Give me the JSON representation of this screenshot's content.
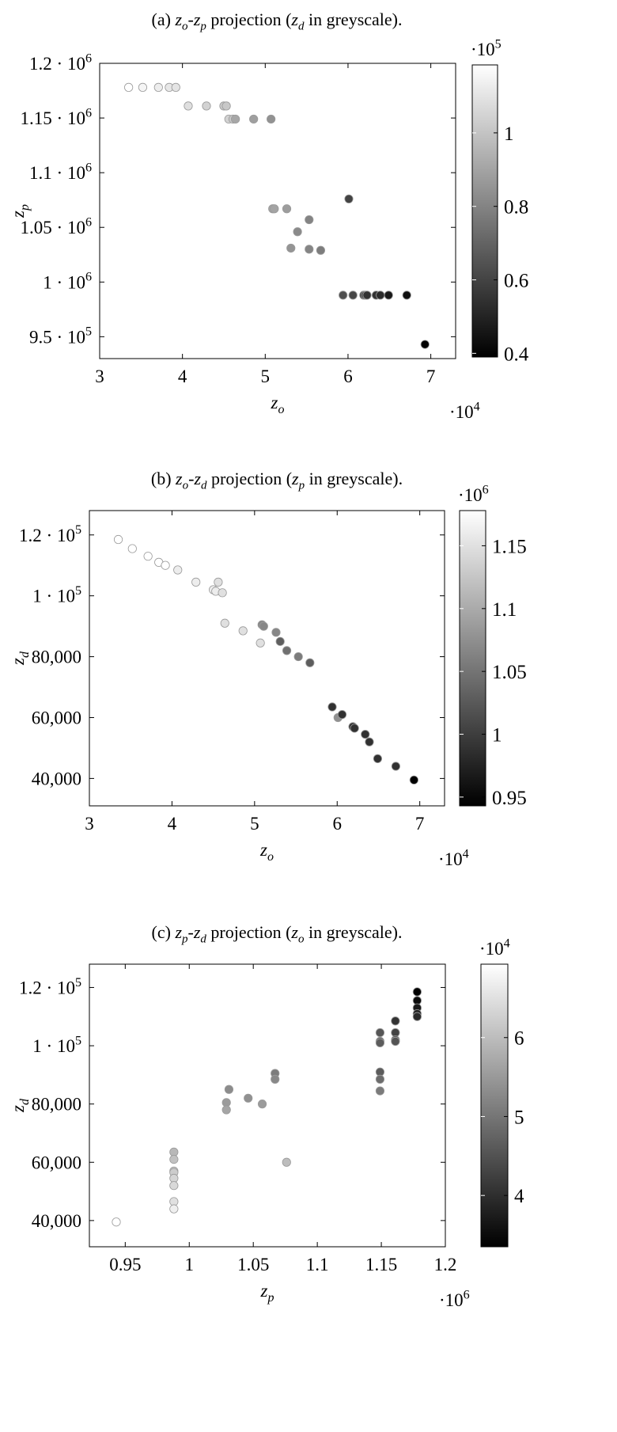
{
  "charts": [
    {
      "caption_parts": [
        "(a) ",
        "z",
        "o",
        "-",
        "z",
        "p",
        " projection (",
        "z",
        "d",
        " in greyscale)."
      ],
      "chart_data": {
        "type": "scatter",
        "xlabel": "z_o",
        "ylabel": "z_p",
        "colorbar_label": "z_d",
        "xlim": [
          30000,
          73000
        ],
        "ylim": [
          930000,
          1200000
        ],
        "clim": [
          39000,
          118500
        ],
        "x_ticks": [
          30000,
          40000,
          50000,
          60000,
          70000
        ],
        "x_tick_labels": [
          "3",
          "4",
          "5",
          "6",
          "7"
        ],
        "x_exponent": "10^4",
        "y_ticks": [
          950000,
          1000000,
          1050000,
          1100000,
          1150000,
          1200000
        ],
        "y_tick_labels": [
          "9.5 · 10^5",
          "1 · 10^6",
          "1.05 · 10^6",
          "1.1 · 10^6",
          "1.15 · 10^6",
          "1.2 · 10^6"
        ],
        "c_ticks": [
          40000,
          60000,
          80000,
          100000
        ],
        "c_tick_labels": [
          "0.4",
          "0.6",
          "0.8",
          "1"
        ],
        "c_exponent": "10^5",
        "grid": false,
        "points": [
          {
            "x": 33500,
            "y": 1178000,
            "c": 118500
          },
          {
            "x": 35200,
            "y": 1178000,
            "c": 115500
          },
          {
            "x": 37100,
            "y": 1178000,
            "c": 113000
          },
          {
            "x": 38400,
            "y": 1178000,
            "c": 111000
          },
          {
            "x": 39200,
            "y": 1178000,
            "c": 110000
          },
          {
            "x": 40700,
            "y": 1161000,
            "c": 108500
          },
          {
            "x": 42900,
            "y": 1161000,
            "c": 104500
          },
          {
            "x": 45000,
            "y": 1161000,
            "c": 102000
          },
          {
            "x": 45300,
            "y": 1161000,
            "c": 101500
          },
          {
            "x": 45600,
            "y": 1149000,
            "c": 104500
          },
          {
            "x": 46100,
            "y": 1149000,
            "c": 101000
          },
          {
            "x": 46400,
            "y": 1149000,
            "c": 91000
          },
          {
            "x": 48600,
            "y": 1149000,
            "c": 88500
          },
          {
            "x": 50700,
            "y": 1149000,
            "c": 84500
          },
          {
            "x": 50900,
            "y": 1067000,
            "c": 90500
          },
          {
            "x": 51100,
            "y": 1067000,
            "c": 90000
          },
          {
            "x": 52600,
            "y": 1067000,
            "c": 88000
          },
          {
            "x": 53100,
            "y": 1031000,
            "c": 85000
          },
          {
            "x": 53900,
            "y": 1046000,
            "c": 82000
          },
          {
            "x": 55300,
            "y": 1057000,
            "c": 80000
          },
          {
            "x": 55300,
            "y": 1030000,
            "c": 80500
          },
          {
            "x": 56700,
            "y": 1029000,
            "c": 78000
          },
          {
            "x": 59400,
            "y": 988000,
            "c": 63500
          },
          {
            "x": 60600,
            "y": 988000,
            "c": 61000
          },
          {
            "x": 61900,
            "y": 988000,
            "c": 57000
          },
          {
            "x": 62100,
            "y": 988000,
            "c": 56500
          },
          {
            "x": 62300,
            "y": 988000,
            "c": 55000
          },
          {
            "x": 63400,
            "y": 988000,
            "c": 54500
          },
          {
            "x": 63900,
            "y": 988000,
            "c": 52000
          },
          {
            "x": 64900,
            "y": 988000,
            "c": 46500
          },
          {
            "x": 67100,
            "y": 988000,
            "c": 44000
          },
          {
            "x": 60100,
            "y": 1076000,
            "c": 60000
          },
          {
            "x": 69300,
            "y": 943000,
            "c": 39500
          }
        ]
      }
    },
    {
      "caption_parts": [
        "(b) ",
        "z",
        "o",
        "-",
        "z",
        "d",
        " projection (",
        "z",
        "p",
        " in greyscale)."
      ],
      "chart_data": {
        "type": "scatter",
        "xlabel": "z_o",
        "ylabel": "z_d",
        "colorbar_label": "z_p",
        "xlim": [
          30000,
          73000
        ],
        "ylim": [
          31000,
          128000
        ],
        "clim": [
          943000,
          1178000
        ],
        "x_ticks": [
          30000,
          40000,
          50000,
          60000,
          70000
        ],
        "x_tick_labels": [
          "3",
          "4",
          "5",
          "6",
          "7"
        ],
        "x_exponent": "10^4",
        "y_ticks": [
          40000,
          60000,
          80000,
          100000,
          120000
        ],
        "y_tick_labels": [
          "40,000",
          "60,000",
          "80,000",
          "1 · 10^5",
          "1.2 · 10^5"
        ],
        "c_ticks": [
          950000,
          1000000,
          1050000,
          1100000,
          1150000
        ],
        "c_tick_labels": [
          "0.95",
          "1",
          "1.05",
          "1.1",
          "1.15"
        ],
        "c_exponent": "10^6",
        "grid": false,
        "points": [
          {
            "x": 33500,
            "y": 118500,
            "c": 1178000
          },
          {
            "x": 35200,
            "y": 115500,
            "c": 1178000
          },
          {
            "x": 37100,
            "y": 113000,
            "c": 1178000
          },
          {
            "x": 38400,
            "y": 111000,
            "c": 1178000
          },
          {
            "x": 39200,
            "y": 110000,
            "c": 1178000
          },
          {
            "x": 40700,
            "y": 108500,
            "c": 1161000
          },
          {
            "x": 42900,
            "y": 104500,
            "c": 1161000
          },
          {
            "x": 45000,
            "y": 102000,
            "c": 1161000
          },
          {
            "x": 45300,
            "y": 101500,
            "c": 1161000
          },
          {
            "x": 45600,
            "y": 104500,
            "c": 1149000
          },
          {
            "x": 46100,
            "y": 101000,
            "c": 1149000
          },
          {
            "x": 46400,
            "y": 91000,
            "c": 1149000
          },
          {
            "x": 48600,
            "y": 88500,
            "c": 1149000
          },
          {
            "x": 50700,
            "y": 84500,
            "c": 1149000
          },
          {
            "x": 50900,
            "y": 90500,
            "c": 1067000
          },
          {
            "x": 51100,
            "y": 90000,
            "c": 1067000
          },
          {
            "x": 52600,
            "y": 88000,
            "c": 1067000
          },
          {
            "x": 53100,
            "y": 85000,
            "c": 1031000
          },
          {
            "x": 53900,
            "y": 82000,
            "c": 1046000
          },
          {
            "x": 55300,
            "y": 80000,
            "c": 1057000
          },
          {
            "x": 56700,
            "y": 78000,
            "c": 1029000
          },
          {
            "x": 59400,
            "y": 63500,
            "c": 988000
          },
          {
            "x": 60100,
            "y": 60000,
            "c": 1076000
          },
          {
            "x": 60600,
            "y": 61000,
            "c": 988000
          },
          {
            "x": 61900,
            "y": 57000,
            "c": 988000
          },
          {
            "x": 62100,
            "y": 56500,
            "c": 988000
          },
          {
            "x": 63400,
            "y": 54500,
            "c": 988000
          },
          {
            "x": 63900,
            "y": 52000,
            "c": 988000
          },
          {
            "x": 64900,
            "y": 46500,
            "c": 988000
          },
          {
            "x": 67100,
            "y": 44000,
            "c": 988000
          },
          {
            "x": 69300,
            "y": 39500,
            "c": 943000
          }
        ]
      }
    },
    {
      "caption_parts": [
        "(c) ",
        "z",
        "p",
        "-",
        "z",
        "d",
        " projection (",
        "z",
        "o",
        " in greyscale)."
      ],
      "chart_data": {
        "type": "scatter",
        "xlabel": "z_p",
        "ylabel": "z_d",
        "colorbar_label": "z_o",
        "xlim": [
          922000,
          1200000
        ],
        "ylim": [
          31000,
          128000
        ],
        "clim": [
          33500,
          69300
        ],
        "x_ticks": [
          950000,
          1000000,
          1050000,
          1100000,
          1150000,
          1200000
        ],
        "x_tick_labels": [
          "0.95",
          "1",
          "1.05",
          "1.1",
          "1.15",
          "1.2"
        ],
        "x_exponent": "10^6",
        "y_ticks": [
          40000,
          60000,
          80000,
          100000,
          120000
        ],
        "y_tick_labels": [
          "40,000",
          "60,000",
          "80,000",
          "1 · 10^5",
          "1.2 · 10^5"
        ],
        "c_ticks": [
          40000,
          50000,
          60000
        ],
        "c_tick_labels": [
          "4",
          "5",
          "6"
        ],
        "c_exponent": "10^4",
        "grid": false,
        "points": [
          {
            "x": 1178000,
            "y": 118500,
            "c": 33500
          },
          {
            "x": 1178000,
            "y": 115500,
            "c": 35200
          },
          {
            "x": 1178000,
            "y": 113000,
            "c": 37100
          },
          {
            "x": 1178000,
            "y": 111000,
            "c": 38400
          },
          {
            "x": 1178000,
            "y": 110000,
            "c": 39200
          },
          {
            "x": 1161000,
            "y": 108500,
            "c": 40700
          },
          {
            "x": 1161000,
            "y": 104500,
            "c": 42900
          },
          {
            "x": 1161000,
            "y": 102000,
            "c": 45000
          },
          {
            "x": 1161000,
            "y": 101500,
            "c": 45300
          },
          {
            "x": 1149000,
            "y": 104500,
            "c": 45600
          },
          {
            "x": 1149000,
            "y": 101500,
            "c": 46100
          },
          {
            "x": 1149000,
            "y": 101000,
            "c": 46400
          },
          {
            "x": 1149000,
            "y": 91000,
            "c": 46400
          },
          {
            "x": 1149000,
            "y": 88500,
            "c": 48600
          },
          {
            "x": 1149000,
            "y": 84500,
            "c": 50700
          },
          {
            "x": 1067000,
            "y": 90500,
            "c": 50900
          },
          {
            "x": 1067000,
            "y": 88500,
            "c": 52600
          },
          {
            "x": 1031000,
            "y": 85000,
            "c": 53100
          },
          {
            "x": 1046000,
            "y": 82000,
            "c": 53900
          },
          {
            "x": 1057000,
            "y": 80000,
            "c": 55300
          },
          {
            "x": 1029000,
            "y": 80500,
            "c": 55300
          },
          {
            "x": 1029000,
            "y": 78000,
            "c": 56700
          },
          {
            "x": 1076000,
            "y": 60000,
            "c": 60100
          },
          {
            "x": 988000,
            "y": 63500,
            "c": 59400
          },
          {
            "x": 988000,
            "y": 61000,
            "c": 60600
          },
          {
            "x": 988000,
            "y": 57000,
            "c": 61900
          },
          {
            "x": 988000,
            "y": 56500,
            "c": 62100
          },
          {
            "x": 988000,
            "y": 54500,
            "c": 63400
          },
          {
            "x": 988000,
            "y": 52000,
            "c": 63900
          },
          {
            "x": 988000,
            "y": 46500,
            "c": 64900
          },
          {
            "x": 988000,
            "y": 44000,
            "c": 67100
          },
          {
            "x": 943000,
            "y": 39500,
            "c": 69300
          }
        ]
      }
    }
  ]
}
